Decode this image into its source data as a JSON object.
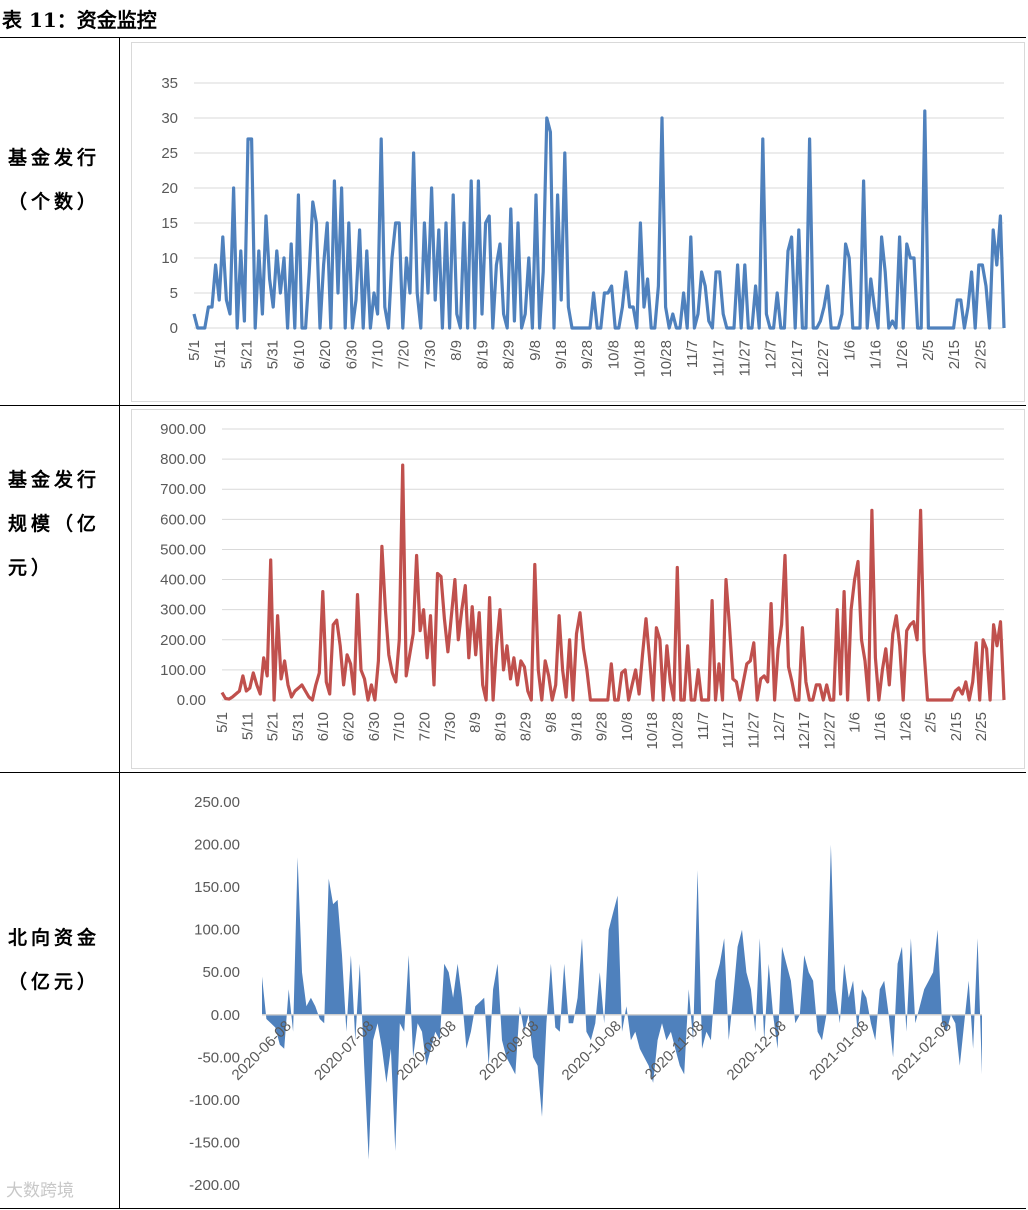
{
  "title": "表 11：资金监控",
  "rows": [
    {
      "label_lines": [
        "基金发行",
        "（个数）"
      ]
    },
    {
      "label_lines": [
        "基金发行",
        "规模（亿",
        "元）"
      ]
    },
    {
      "label_lines": [
        "北向资金",
        "（亿元）"
      ]
    }
  ],
  "watermark": "大数跨境",
  "colors": {
    "series1": "#4F81BD",
    "series2": "#C0504D",
    "series3": "#4F81BD",
    "grid": "#d9d9d9",
    "axis_text": "#595959"
  },
  "chart_data": [
    {
      "type": "line",
      "ylim": [
        0,
        35
      ],
      "yticks": [
        0,
        5,
        10,
        15,
        20,
        25,
        30,
        35
      ],
      "ytick_labels": [
        "0",
        "5",
        "10",
        "15",
        "20",
        "25",
        "30",
        "35"
      ],
      "xtick_labels": [
        "5/1",
        "5/11",
        "5/21",
        "5/31",
        "6/10",
        "6/20",
        "6/30",
        "7/10",
        "7/20",
        "7/30",
        "8/9",
        "8/19",
        "8/29",
        "9/8",
        "9/18",
        "9/28",
        "10/8",
        "10/18",
        "10/28",
        "11/7",
        "11/17",
        "11/27",
        "12/7",
        "12/17",
        "12/27",
        "1/6",
        "1/16",
        "1/26",
        "2/5",
        "2/15",
        "2/25"
      ],
      "grid": true,
      "values": [
        2,
        0,
        0,
        0,
        3,
        3,
        9,
        4,
        13,
        4,
        2,
        20,
        0,
        11,
        1,
        27,
        27,
        0,
        11,
        2,
        16,
        7,
        3,
        11,
        5,
        10,
        0,
        12,
        0,
        19,
        0,
        0,
        8,
        18,
        15,
        0,
        9,
        15,
        0,
        21,
        5,
        20,
        0,
        15,
        0,
        4,
        14,
        0,
        11,
        0,
        5,
        2,
        27,
        3,
        0,
        10,
        15,
        15,
        0,
        10,
        5,
        25,
        5,
        0,
        15,
        5,
        20,
        4,
        14,
        0,
        15,
        0,
        19,
        2,
        0,
        15,
        0,
        21,
        0,
        21,
        2,
        15,
        16,
        0,
        9,
        12,
        2,
        0,
        17,
        1,
        15,
        0,
        2,
        10,
        0,
        19,
        0,
        8,
        30,
        28,
        0,
        19,
        4,
        25,
        3,
        0,
        0,
        0,
        0,
        0,
        0,
        5,
        0,
        0,
        5,
        5,
        6,
        0,
        0,
        3,
        8,
        3,
        3,
        0,
        15,
        3,
        7,
        0,
        0,
        6,
        30,
        3,
        0,
        2,
        0,
        0,
        5,
        0,
        13,
        0,
        2,
        8,
        6,
        1,
        0,
        8,
        8,
        2,
        0,
        0,
        0,
        9,
        0,
        9,
        0,
        0,
        6,
        0,
        27,
        2,
        0,
        0,
        5,
        0,
        0,
        11,
        13,
        0,
        14,
        0,
        0,
        27,
        0,
        0,
        1,
        3,
        6,
        0,
        0,
        0,
        2,
        12,
        10,
        0,
        0,
        0,
        21,
        0,
        7,
        3,
        0,
        13,
        8,
        0,
        1,
        0,
        13,
        0,
        12,
        10,
        10,
        0,
        0,
        31,
        0,
        0,
        0,
        0,
        0,
        0,
        0,
        0,
        4,
        4,
        0,
        3,
        8,
        0,
        9,
        9,
        6,
        0,
        14,
        9,
        16,
        0
      ]
    },
    {
      "type": "line",
      "ylim": [
        0,
        900
      ],
      "yticks": [
        0,
        100,
        200,
        300,
        400,
        500,
        600,
        700,
        800,
        900
      ],
      "ytick_labels": [
        "0.00",
        "100.00",
        "200.00",
        "300.00",
        "400.00",
        "500.00",
        "600.00",
        "700.00",
        "800.00",
        "900.00"
      ],
      "xtick_labels": [
        "5/1",
        "5/11",
        "5/21",
        "5/31",
        "6/10",
        "6/20",
        "6/30",
        "7/10",
        "7/20",
        "7/30",
        "8/9",
        "8/19",
        "8/29",
        "9/8",
        "9/18",
        "9/28",
        "10/8",
        "10/18",
        "10/28",
        "11/7",
        "11/17",
        "11/27",
        "12/7",
        "12/17",
        "12/27",
        "1/6",
        "1/16",
        "1/26",
        "2/5",
        "2/15",
        "2/25"
      ],
      "grid": true,
      "values": [
        25,
        5,
        3,
        10,
        20,
        30,
        80,
        30,
        40,
        90,
        50,
        20,
        140,
        80,
        465,
        0,
        280,
        70,
        130,
        50,
        10,
        30,
        40,
        50,
        30,
        10,
        0,
        50,
        90,
        360,
        60,
        20,
        250,
        265,
        180,
        50,
        150,
        120,
        20,
        350,
        100,
        70,
        0,
        50,
        0,
        130,
        510,
        300,
        150,
        90,
        60,
        200,
        780,
        80,
        150,
        220,
        480,
        230,
        300,
        140,
        280,
        50,
        420,
        410,
        270,
        160,
        280,
        400,
        200,
        300,
        380,
        140,
        310,
        150,
        290,
        50,
        0,
        340,
        0,
        180,
        300,
        100,
        180,
        70,
        140,
        50,
        130,
        110,
        30,
        0,
        450,
        100,
        0,
        130,
        80,
        0,
        50,
        280,
        100,
        10,
        200,
        0,
        220,
        290,
        170,
        100,
        0,
        0,
        0,
        0,
        0,
        0,
        120,
        0,
        0,
        90,
        100,
        0,
        50,
        100,
        20,
        150,
        270,
        140,
        0,
        240,
        200,
        0,
        180,
        60,
        0,
        440,
        0,
        0,
        180,
        0,
        0,
        100,
        0,
        0,
        0,
        330,
        0,
        120,
        0,
        400,
        250,
        70,
        60,
        0,
        60,
        120,
        130,
        190,
        0,
        70,
        80,
        60,
        320,
        0,
        170,
        250,
        480,
        110,
        60,
        0,
        0,
        240,
        60,
        0,
        0,
        50,
        50,
        0,
        50,
        0,
        0,
        300,
        20,
        360,
        0,
        300,
        400,
        460,
        200,
        130,
        0,
        630,
        140,
        0,
        100,
        170,
        50,
        220,
        280,
        180,
        0,
        230,
        250,
        260,
        200,
        630,
        160,
        0,
        0,
        0,
        0,
        0,
        0,
        0,
        0,
        30,
        40,
        20,
        60,
        0,
        60,
        190,
        0,
        200,
        170,
        0,
        250,
        180,
        260,
        0
      ]
    },
    {
      "type": "area",
      "ylim": [
        -200,
        250
      ],
      "yticks": [
        -200,
        -150,
        -100,
        -50,
        0,
        50,
        100,
        150,
        200,
        250
      ],
      "ytick_labels": [
        "-200.00",
        "-150.00",
        "-100.00",
        "-50.00",
        "0.00",
        "50.00",
        "100.00",
        "150.00",
        "200.00",
        "250.00"
      ],
      "xtick_labels": [
        "2020-06-08",
        "2020-07-08",
        "2020-08-08",
        "2020-09-08",
        "2020-10-08",
        "2020-11-08",
        "2020-12-08",
        "2021-01-08",
        "2021-02-08"
      ],
      "grid": false,
      "values": [
        45,
        -5,
        -10,
        -15,
        -35,
        -40,
        30,
        -20,
        185,
        50,
        10,
        20,
        10,
        -5,
        -10,
        160,
        130,
        135,
        70,
        -20,
        70,
        -30,
        60,
        -60,
        -170,
        -30,
        -10,
        -40,
        -80,
        -40,
        -160,
        -10,
        -20,
        70,
        -50,
        -10,
        -20,
        -60,
        -40,
        -20,
        -30,
        60,
        50,
        20,
        60,
        20,
        -40,
        -20,
        10,
        15,
        20,
        -60,
        30,
        60,
        -30,
        -50,
        -60,
        -70,
        10,
        -20,
        0,
        -50,
        -60,
        -120,
        -10,
        60,
        -15,
        -20,
        60,
        -10,
        -10,
        20,
        90,
        -20,
        -30,
        -10,
        50,
        -10,
        100,
        120,
        140,
        -20,
        10,
        -30,
        -20,
        -40,
        -50,
        -60,
        -80,
        -30,
        -10,
        -30,
        -20,
        -40,
        -60,
        -70,
        30,
        -30,
        170,
        -40,
        -20,
        -30,
        40,
        60,
        90,
        -30,
        20,
        80,
        100,
        50,
        30,
        -20,
        90,
        -30,
        60,
        0,
        -40,
        80,
        60,
        40,
        -10,
        0,
        70,
        50,
        40,
        -20,
        -30,
        0,
        200,
        30,
        -10,
        60,
        20,
        40,
        -20,
        30,
        20,
        -10,
        -30,
        30,
        40,
        0,
        -50,
        60,
        80,
        -20,
        90,
        -10,
        10,
        30,
        40,
        50,
        100,
        -10,
        -20,
        0,
        -10,
        -60,
        -10,
        40,
        -40,
        90,
        -70
      ]
    }
  ]
}
